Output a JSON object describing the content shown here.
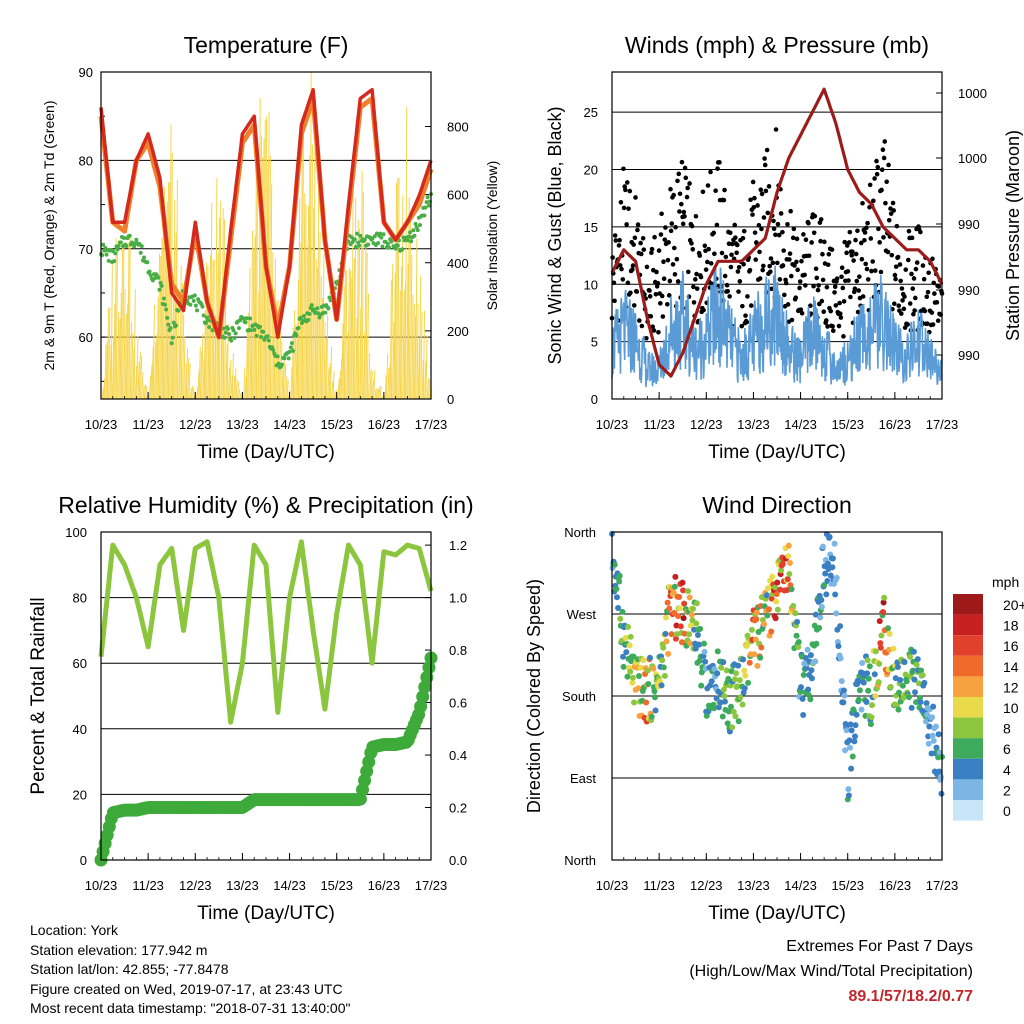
{
  "charts_common": {
    "xlabel": "Time (Day/UTC)",
    "xticks": [
      "10/23",
      "11/23",
      "12/23",
      "13/23",
      "14/23",
      "15/23",
      "16/23",
      "17/23"
    ]
  },
  "temperature": {
    "title": "Temperature (F)",
    "ylabel": "2m & 9m T (Red, Orange) & 2m Td (Green)",
    "y2label": "Solar Insolation (Yellow)",
    "yticks": [
      "60",
      "70",
      "80",
      "90"
    ],
    "y2ticks": [
      "0",
      "200",
      "400",
      "600",
      "800"
    ]
  },
  "winds": {
    "title": "Winds (mph) & Pressure (mb)",
    "ylabel": "Sonic Wind & Gust (Blue, Black)",
    "y2label": "Station Pressure (Maroon)",
    "yticks": [
      "0",
      "5",
      "10",
      "15",
      "20",
      "25"
    ],
    "y2ticks": [
      "990",
      "990",
      "990",
      "1000",
      "1000"
    ]
  },
  "humidity": {
    "title": "Relative Humidity (%) & Precipitation (in)",
    "ylabel": "Percent & Total Rainfall",
    "yticks": [
      "0",
      "20",
      "40",
      "60",
      "80",
      "100"
    ],
    "y2ticks": [
      "0.0",
      "0.2",
      "0.4",
      "0.6",
      "0.8",
      "1.0",
      "1.2"
    ]
  },
  "direction": {
    "title": "Wind Direction",
    "ylabel": "Direction (Colored By Speed)",
    "yticks": [
      "North",
      "East",
      "South",
      "West",
      "North"
    ],
    "colorbar_title": "mph",
    "colorbar_labels": [
      "20+",
      "18",
      "16",
      "14",
      "12",
      "10",
      "8",
      "6",
      "4",
      "2",
      "0"
    ],
    "colorbar_colors": [
      "#9e1a1a",
      "#c62020",
      "#e0402c",
      "#f06a2c",
      "#f7a23e",
      "#e8da4a",
      "#8cc63e",
      "#3daa5c",
      "#3a7fc2",
      "#7bb6e4",
      "#c8e6f8"
    ]
  },
  "info": {
    "location": "Location: York",
    "elevation": "Station elevation: 177.942 m",
    "latlon": "Station lat/lon: 42.855; -77.8478",
    "created": "Figure created on Wed, 2019-07-17, at 23:43 UTC",
    "recent": "Most recent data timestamp: \"2018-07-31 13:40:00\""
  },
  "extremes": {
    "title": "Extremes For Past 7 Days",
    "subtitle": "(High/Low/Max Wind/Total Precipitation)",
    "values": "89.1/57/18.2/0.77"
  },
  "chart_data": [
    {
      "type": "line",
      "title": "Temperature (F)",
      "xlabel": "Time (Day/UTC)",
      "ylabel": "2m & 9m T (Red, Orange) & 2m Td (Green)",
      "y2label": "Solar Insolation (Yellow)",
      "x": [
        0,
        0.25,
        0.5,
        0.75,
        1,
        1.25,
        1.5,
        1.75,
        2,
        2.25,
        2.5,
        2.75,
        3,
        3.25,
        3.5,
        3.75,
        4,
        4.25,
        4.5,
        4.75,
        5,
        5.25,
        5.5,
        5.75,
        6,
        6.25,
        6.5,
        6.75,
        7
      ],
      "ylim": [
        53,
        90
      ],
      "y2lim": [
        0,
        960
      ],
      "series": [
        {
          "name": "2m T",
          "color": "#d42a1e",
          "values": [
            86,
            73,
            73,
            80,
            83,
            78,
            65,
            63,
            73,
            64,
            60,
            72,
            83,
            85,
            68,
            60,
            68,
            84,
            88,
            71,
            62,
            75,
            87,
            88,
            73,
            71,
            73,
            76,
            80
          ]
        },
        {
          "name": "9m T",
          "color": "#f07f2c",
          "values": [
            85,
            73,
            72,
            80,
            82,
            77,
            66,
            64,
            72,
            64,
            60,
            71,
            82,
            84,
            68,
            61,
            68,
            83,
            87,
            71,
            62,
            74,
            86,
            87,
            73,
            71,
            73,
            75,
            79
          ]
        },
        {
          "name": "2m Td",
          "color": "#4aae46",
          "values": [
            70,
            69,
            71,
            71,
            68,
            66,
            60,
            65,
            64,
            62,
            61,
            60,
            62,
            61,
            60,
            57,
            58,
            62,
            63,
            63,
            66,
            71,
            71,
            71,
            71,
            70,
            71,
            73,
            76
          ]
        },
        {
          "name": "Solar Insolation",
          "color": "#f6d54a",
          "values": [
            0,
            480,
            700,
            200,
            0,
            750,
            820,
            200,
            0,
            500,
            680,
            150,
            0,
            820,
            900,
            250,
            0,
            880,
            950,
            300,
            0,
            600,
            700,
            100,
            0,
            600,
            850,
            400,
            0
          ]
        }
      ]
    },
    {
      "type": "line",
      "title": "Winds (mph) & Pressure (mb)",
      "xlabel": "Time (Day/UTC)",
      "ylabel": "Sonic Wind & Gust (Blue, Black)",
      "y2label": "Station Pressure (Maroon)",
      "x": [
        0,
        0.25,
        0.5,
        0.75,
        1,
        1.25,
        1.5,
        1.75,
        2,
        2.25,
        2.5,
        2.75,
        3,
        3.25,
        3.5,
        3.75,
        4,
        4.25,
        4.5,
        4.75,
        5,
        5.25,
        5.5,
        5.75,
        6,
        6.25,
        6.5,
        6.75,
        7
      ],
      "ylim": [
        0,
        28.5
      ],
      "series": [
        {
          "name": "Sonic Wind",
          "color": "#5b9bd5",
          "values": [
            5,
            7,
            6,
            3,
            3,
            7,
            8,
            5,
            6,
            9,
            6,
            4,
            6,
            8,
            9,
            5,
            4,
            7,
            5,
            3,
            4,
            6,
            7,
            8,
            5,
            4,
            6,
            4,
            3
          ]
        },
        {
          "name": "Gust",
          "color": "#000000",
          "values": [
            12,
            17,
            15,
            10,
            13,
            16,
            18,
            14,
            16,
            18,
            14,
            12,
            16,
            18,
            20,
            14,
            12,
            14,
            13,
            10,
            12,
            14,
            16,
            20,
            14,
            12,
            13,
            11,
            9
          ]
        },
        {
          "name": "Station Pressure",
          "color": "#9c1c1c",
          "values": [
            11,
            13,
            12,
            7,
            3,
            2,
            4,
            7,
            10,
            12,
            12,
            12,
            13,
            14,
            18,
            21,
            23,
            25,
            27,
            24,
            20,
            18,
            17,
            15,
            14,
            13,
            13,
            12,
            10
          ]
        }
      ]
    },
    {
      "type": "line",
      "title": "Relative Humidity (%) & Precipitation (in)",
      "xlabel": "Time (Day/UTC)",
      "ylabel": "Percent & Total Rainfall",
      "x": [
        0,
        0.25,
        0.5,
        0.75,
        1,
        1.25,
        1.5,
        1.75,
        2,
        2.25,
        2.5,
        2.75,
        3,
        3.25,
        3.5,
        3.75,
        4,
        4.25,
        4.5,
        4.75,
        5,
        5.25,
        5.5,
        5.75,
        6,
        6.25,
        6.5,
        6.75,
        7
      ],
      "ylim": [
        0,
        100
      ],
      "y2lim": [
        0,
        1.25
      ],
      "series": [
        {
          "name": "Relative Humidity",
          "color": "#8cc63e",
          "values": [
            62,
            96,
            90,
            80,
            65,
            90,
            95,
            70,
            95,
            97,
            80,
            42,
            60,
            96,
            90,
            45,
            80,
            97,
            70,
            46,
            75,
            96,
            90,
            60,
            94,
            93,
            96,
            95,
            82
          ]
        },
        {
          "name": "Total Rainfall",
          "color": "#3daa3a",
          "values": [
            0,
            0.18,
            0.19,
            0.19,
            0.2,
            0.2,
            0.2,
            0.2,
            0.2,
            0.2,
            0.2,
            0.2,
            0.2,
            0.23,
            0.23,
            0.23,
            0.23,
            0.23,
            0.23,
            0.23,
            0.23,
            0.23,
            0.23,
            0.43,
            0.44,
            0.44,
            0.45,
            0.56,
            0.77
          ]
        }
      ]
    },
    {
      "type": "scatter",
      "title": "Wind Direction",
      "xlabel": "Time (Day/UTC)",
      "ylabel": "Direction (Colored By Speed)",
      "x": [
        0,
        0.25,
        0.5,
        0.75,
        1,
        1.25,
        1.5,
        1.75,
        2,
        2.25,
        2.5,
        2.75,
        3,
        3.25,
        3.5,
        3.75,
        4,
        4.25,
        4.5,
        4.75,
        5,
        5.25,
        5.5,
        5.75,
        6,
        6.25,
        6.5,
        6.75,
        7
      ],
      "ylim": [
        0,
        360
      ],
      "series": [
        {
          "name": "Direction",
          "values": [
            340,
            245,
            190,
            185,
            195,
            280,
            270,
            265,
            190,
            200,
            175,
            190,
            240,
            260,
            300,
            320,
            190,
            200,
            330,
            310,
            90,
            200,
            180,
            260,
            190,
            200,
            190,
            150,
            90
          ]
        },
        {
          "name": "Speed",
          "values": [
            3,
            6,
            8,
            11,
            6,
            11,
            14,
            6,
            4,
            5,
            6,
            6,
            12,
            8,
            13,
            11,
            4,
            5,
            4,
            3,
            4,
            4,
            6,
            14,
            7,
            6,
            6,
            3,
            4
          ]
        }
      ]
    }
  ]
}
